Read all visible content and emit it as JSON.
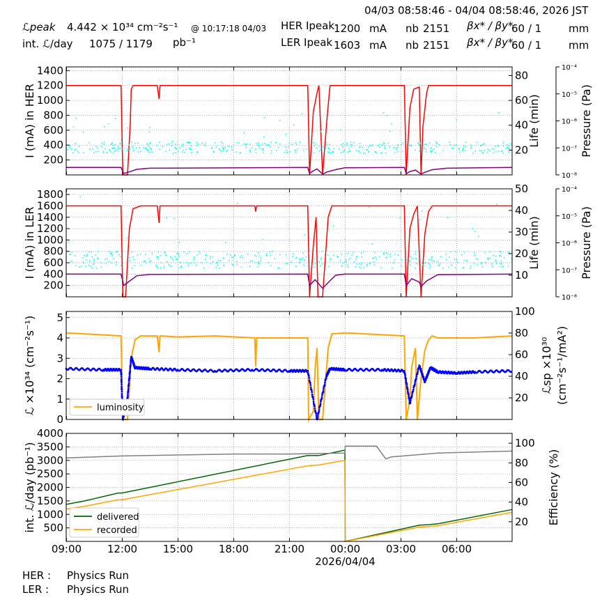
{
  "header": {
    "range": "04/03 08:58:46 - 04/04 08:58:46, 2026 JST",
    "lpeak_label": "ℒpeak",
    "lpeak_value": "4.442  × 10³⁴ cm⁻²s⁻¹",
    "lpeak_time": "@ 10:17:18 04/03",
    "intl_label": "int. ℒ/day",
    "intl_value": "1075   /  1179",
    "intl_unit": "pb⁻¹",
    "her_label": "HER Ipeak",
    "her_value": "1200",
    "her_unit": "mA",
    "ler_label": "LER Ipeak",
    "ler_value": "1603",
    "ler_unit": "mA",
    "nb_label": "nb",
    "nb_her": "2151",
    "nb_ler": "2151",
    "beta_label": "βx* / βy*",
    "beta_her": "60    / 1",
    "beta_ler": "60    / 1",
    "beta_unit": "mm"
  },
  "footer": {
    "her": "HER :",
    "her_status": "Physics Run",
    "ler": "LER :",
    "ler_status": "Physics Run"
  },
  "colors": {
    "current": "#ff0000",
    "life": "#00ffff",
    "pressure": "#800080",
    "lumi": "#ffa500",
    "lsp": "#0000ff",
    "delivered": "#006400",
    "recorded": "#ffa500",
    "efficiency": "#808080"
  },
  "chart_data": [
    {
      "type": "line",
      "panel": "HER",
      "ylabel": "I (mA) in HER",
      "ylim": [
        0,
        1450
      ],
      "yticks": [
        200,
        400,
        600,
        800,
        1000,
        1200,
        1400
      ],
      "y2label": "Life (min)",
      "y2lim": [
        0,
        87
      ],
      "y2ticks": [
        20,
        40,
        60,
        80
      ],
      "y3label": "Pressure (Pa)",
      "y3ticks": [
        "10⁻⁸",
        "10⁻⁷",
        "10⁻⁶",
        "10⁻⁵",
        "10⁻⁴"
      ],
      "series": [
        {
          "x": [
            0,
            2.95,
            3.05,
            3.3,
            3.45,
            3.5,
            3.6,
            4.0,
            4.9,
            5.0,
            5.05,
            13.0,
            13.1,
            13.3,
            13.5,
            13.6,
            13.8,
            14.05,
            14.2,
            18.2,
            18.3,
            18.5,
            18.7,
            19.0,
            19.1,
            19.2,
            19.4,
            19.5,
            20.2,
            24
          ],
          "y": [
            1200,
            1200,
            0,
            0,
            700,
            1150,
            1200,
            1200,
            1200,
            1020,
            1200,
            1200,
            0,
            850,
            1100,
            1200,
            0,
            800,
            1200,
            1200,
            0,
            900,
            1150,
            1180,
            0,
            650,
            1100,
            1200,
            1200,
            1200
          ]
        },
        {
          "x": [
            0,
            2.95,
            3.1,
            3.4,
            3.8,
            4.5,
            13.0,
            13.1,
            13.3,
            13.5,
            13.8,
            14.05,
            14.5,
            15,
            18.2,
            18.3,
            18.5,
            18.8,
            19.1,
            19.3,
            19.7,
            20.5,
            24
          ],
          "y": [
            100,
            100,
            20,
            40,
            75,
            90,
            100,
            20,
            55,
            80,
            10,
            40,
            70,
            95,
            100,
            15,
            45,
            65,
            10,
            35,
            70,
            90,
            100
          ]
        }
      ]
    },
    {
      "type": "line",
      "panel": "LER",
      "ylabel": "I (mA) in LER",
      "ylim": [
        0,
        1900
      ],
      "yticks": [
        200,
        400,
        600,
        800,
        1000,
        1200,
        1400,
        1600,
        1800
      ],
      "y2label": "Life (min)",
      "y2lim": [
        0,
        50
      ],
      "y2ticks": [
        10,
        20,
        30,
        40,
        50
      ],
      "y3label": "Pressure (Pa)",
      "y3ticks": [
        "10⁻⁸",
        "10⁻⁷",
        "10⁻⁶",
        "10⁻⁵",
        "10⁻⁴"
      ],
      "series": [
        {
          "x": [
            0,
            2.95,
            3.05,
            3.2,
            3.4,
            3.6,
            4.0,
            4.9,
            5.0,
            5.05,
            10.15,
            10.2,
            10.25,
            13.0,
            13.1,
            13.3,
            13.45,
            13.55,
            13.8,
            14.1,
            14.3,
            18.2,
            18.3,
            18.5,
            18.7,
            18.9,
            19.1,
            19.3,
            19.5,
            19.7,
            24
          ],
          "y": [
            1600,
            1600,
            0,
            0,
            1200,
            1550,
            1600,
            1600,
            1300,
            1600,
            1600,
            1500,
            1600,
            1600,
            0,
            900,
            1400,
            0,
            0,
            1400,
            1600,
            1600,
            0,
            1200,
            1450,
            1600,
            0,
            1100,
            1500,
            1600,
            1600
          ]
        },
        {
          "x": [
            0,
            2.95,
            3.1,
            3.3,
            3.8,
            4.5,
            13.0,
            13.1,
            13.4,
            13.8,
            14.1,
            14.5,
            15,
            18.2,
            18.3,
            18.6,
            19.0,
            19.1,
            19.4,
            20,
            24
          ],
          "y": [
            400,
            400,
            200,
            250,
            370,
            395,
            400,
            200,
            300,
            150,
            250,
            380,
            400,
            400,
            200,
            320,
            260,
            180,
            280,
            390,
            400
          ]
        }
      ]
    },
    {
      "type": "line",
      "panel": "luminosity",
      "ylabel": "ℒ ×10³⁴ (cm⁻²s⁻¹)",
      "ylim": [
        0,
        5.3
      ],
      "yticks": [
        0,
        1,
        2,
        3,
        4,
        5
      ],
      "y2label": "ℒsp ×10³⁰ (cm⁻²s⁻¹/mA²)",
      "y2lim": [
        0,
        100
      ],
      "y2ticks": [
        20,
        40,
        60,
        80,
        100
      ],
      "legend": "luminosity",
      "series": [
        {
          "name": "luminosity",
          "x": [
            0,
            1,
            2,
            2.95,
            3.05,
            3.3,
            3.5,
            3.7,
            4.0,
            4.9,
            5.0,
            5.05,
            6,
            8,
            10.15,
            10.2,
            10.25,
            13.0,
            13.05,
            13.3,
            13.4,
            13.5,
            13.6,
            13.8,
            14.1,
            14.3,
            15,
            18.2,
            18.3,
            18.5,
            18.6,
            18.8,
            18.9,
            19.1,
            19.3,
            19.5,
            19.7,
            20,
            22,
            24
          ],
          "y": [
            4.25,
            4.2,
            4.15,
            4.1,
            0,
            0,
            3.0,
            3.9,
            4.1,
            4.1,
            3.3,
            4.1,
            4.05,
            4.1,
            4.0,
            2.6,
            4.0,
            4.0,
            0,
            0.4,
            2.5,
            3.5,
            0,
            0,
            3.5,
            4.2,
            4.25,
            4.1,
            0,
            1.0,
            2.6,
            3.5,
            0,
            2.0,
            3.4,
            3.9,
            4.1,
            4.0,
            4.0,
            4.1
          ]
        },
        {
          "name": "ℒsp",
          "x": [
            0,
            2,
            2.95,
            3.05,
            3.3,
            3.5,
            3.7,
            4.5,
            6,
            8,
            10,
            12,
            13.0,
            13.5,
            14.0,
            14.2,
            15,
            17,
            18.2,
            18.5,
            19.0,
            19.3,
            19.6,
            20,
            21,
            22,
            24
          ],
          "y": [
            47,
            46,
            46,
            0,
            20,
            58,
            48,
            47,
            46,
            45,
            46,
            45,
            45,
            0,
            40,
            47,
            46,
            46,
            45,
            15,
            50,
            35,
            48,
            44,
            43,
            44,
            45
          ]
        }
      ]
    },
    {
      "type": "line",
      "panel": "integrated",
      "ylabel": "int. ℒ/day (pb⁻¹)",
      "ylim": [
        0,
        4000
      ],
      "yticks": [
        500,
        1000,
        1500,
        2000,
        2500,
        3000,
        3500,
        4000
      ],
      "y2label": "Efficiency (%)",
      "y2lim": [
        0,
        110
      ],
      "y2ticks": [
        20,
        40,
        60,
        80,
        100
      ],
      "xticks": [
        "09:00",
        "12:00",
        "15:00",
        "18:00",
        "21:00",
        "00:00",
        "03:00",
        "06:00"
      ],
      "xdate": "2026/04/04",
      "series": [
        {
          "name": "delivered",
          "x": [
            0,
            1,
            2.8,
            3.0,
            13.0,
            13.6,
            15,
            15.02,
            19,
            19.5,
            20,
            24
          ],
          "y": [
            1370,
            1500,
            1790,
            1790,
            3180,
            3180,
            3380,
            0,
            600,
            620,
            650,
            1179
          ]
        },
        {
          "name": "recorded",
          "x": [
            0,
            1,
            2.8,
            3.0,
            13.0,
            13.6,
            15,
            15.02,
            19,
            19.5,
            20,
            24
          ],
          "y": [
            1200,
            1300,
            1540,
            1540,
            2800,
            2830,
            3000,
            0,
            530,
            550,
            580,
            1075
          ]
        },
        {
          "name": "efficiency",
          "x": [
            0,
            3,
            6,
            9,
            12,
            15,
            15.02,
            16.7,
            17.2,
            17.5,
            20,
            24
          ],
          "y": [
            85,
            87,
            88,
            89,
            89,
            90,
            97,
            97,
            84,
            86,
            90,
            92
          ]
        }
      ]
    }
  ]
}
